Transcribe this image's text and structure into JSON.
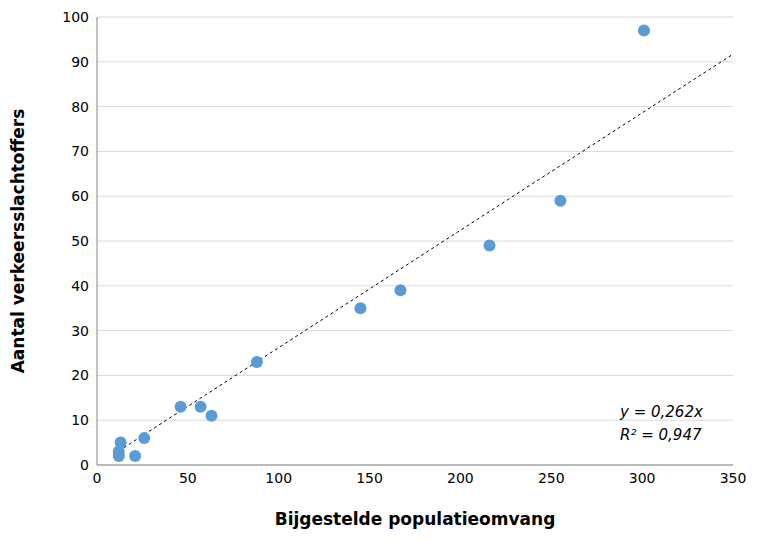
{
  "chart_data": {
    "type": "scatter",
    "xlabel": "Bijgestelde populatieomvang",
    "ylabel": "Aantal verkeersslachtoffers",
    "x": [
      12,
      12,
      13,
      21,
      26,
      46,
      57,
      63,
      88,
      145,
      167,
      216,
      255,
      301
    ],
    "values": [
      2,
      3,
      5,
      2,
      6,
      13,
      13,
      11,
      23,
      35,
      39,
      49,
      59,
      97
    ],
    "color": "#5b9bd5",
    "marker": "circle",
    "xlim": [
      0,
      350
    ],
    "xticks": [
      0,
      50,
      100,
      150,
      200,
      250,
      300,
      350
    ],
    "ylim": [
      0,
      100
    ],
    "yticks": [
      0,
      10,
      20,
      30,
      40,
      50,
      60,
      70,
      80,
      90,
      100
    ],
    "grid": true,
    "trend_line": {
      "slope": 0.262,
      "x": [
        12,
        350
      ],
      "color": "#000000",
      "line_style": "dashed"
    },
    "annotations": [
      "y = 0,262x",
      "R² = 0,947"
    ]
  }
}
